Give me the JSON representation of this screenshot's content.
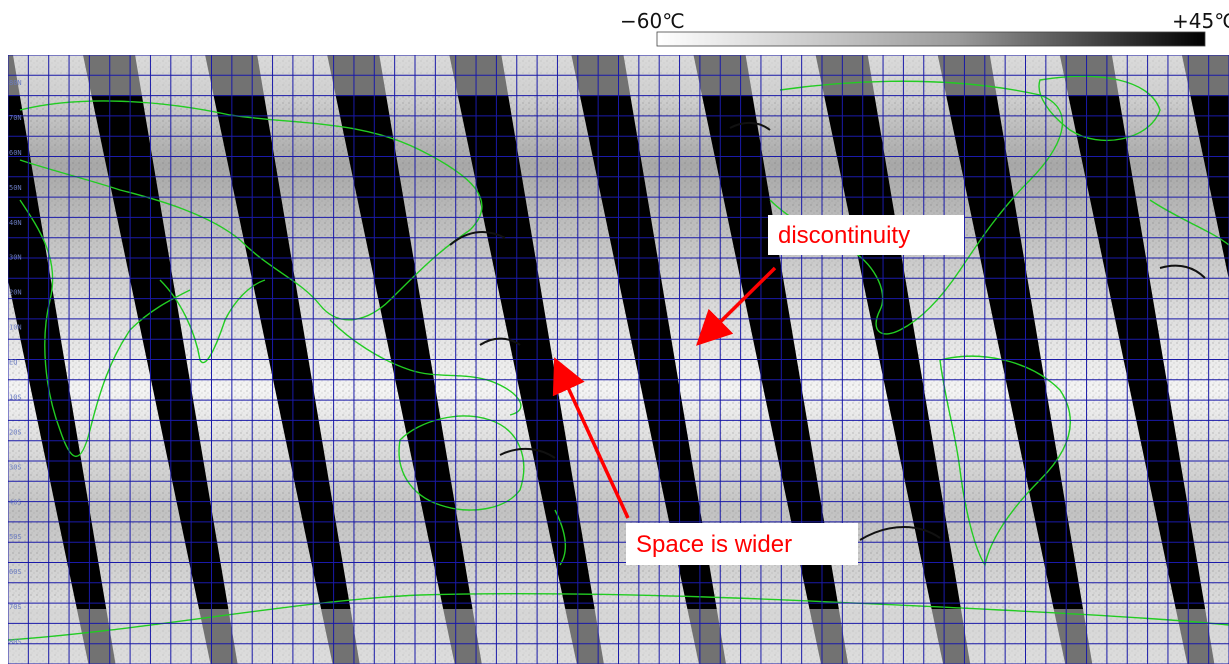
{
  "colorbar": {
    "min_label": "−60℃",
    "max_label": "+45℃",
    "min_color": "#ffffff",
    "max_color": "#000000"
  },
  "map": {
    "projection": "equirectangular-global",
    "background_color": "#000000",
    "coastline_color": "#22cc22",
    "grid_color": "#1a1aa8",
    "grid_columns": 60,
    "grid_rows": 30,
    "swath_count": 12,
    "left_edge_labels": [
      "80N",
      "70N",
      "60N",
      "50N",
      "40N",
      "30N",
      "20N",
      "10N",
      "EQ",
      "10S",
      "20S",
      "30S",
      "40S",
      "50S",
      "60S",
      "70S",
      "80S"
    ]
  },
  "annotations": [
    {
      "label": "discontinuity",
      "color": "#ff0000"
    },
    {
      "label": "Space is wider",
      "color": "#ff0000"
    }
  ]
}
